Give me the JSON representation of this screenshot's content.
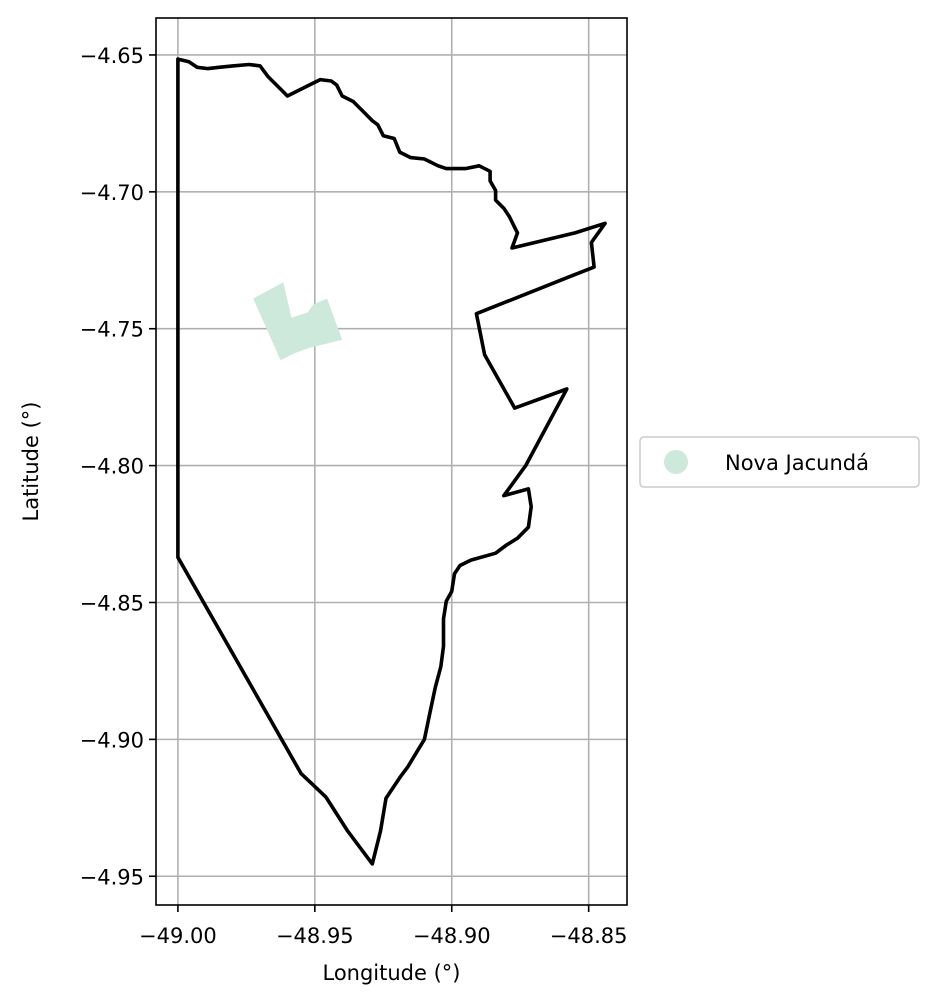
{
  "chart_data": {
    "type": "map",
    "xlabel": "Longitude (°)",
    "ylabel": "Latitude (°)",
    "xlim": [
      -49.008,
      -48.836
    ],
    "ylim": [
      -4.9605,
      -4.6365
    ],
    "grid": true,
    "x_ticks": [
      {
        "value": -49.0,
        "label": "−49.00"
      },
      {
        "value": -48.95,
        "label": "−48.95"
      },
      {
        "value": -48.9,
        "label": "−48.90"
      },
      {
        "value": -48.85,
        "label": "−48.85"
      }
    ],
    "y_ticks": [
      {
        "value": -4.65,
        "label": "−4.65"
      },
      {
        "value": -4.7,
        "label": "−4.70"
      },
      {
        "value": -4.75,
        "label": "−4.75"
      },
      {
        "value": -4.8,
        "label": "−4.80"
      },
      {
        "value": -4.85,
        "label": "−4.85"
      },
      {
        "value": -4.9,
        "label": "−4.90"
      },
      {
        "value": -4.95,
        "label": "−4.95"
      }
    ],
    "boundary": {
      "color": "#000000",
      "coords": [
        [
          -49.0,
          -4.6515
        ],
        [
          -48.996,
          -4.6525
        ],
        [
          -48.993,
          -4.6545
        ],
        [
          -48.989,
          -4.655
        ],
        [
          -48.985,
          -4.6545
        ],
        [
          -48.98,
          -4.654
        ],
        [
          -48.974,
          -4.6535
        ],
        [
          -48.97,
          -4.654
        ],
        [
          -48.967,
          -4.658
        ],
        [
          -48.962,
          -4.663
        ],
        [
          -48.96,
          -4.665
        ],
        [
          -48.957,
          -4.6635
        ],
        [
          -48.953,
          -4.6615
        ],
        [
          -48.948,
          -4.659
        ],
        [
          -48.944,
          -4.6595
        ],
        [
          -48.942,
          -4.661
        ],
        [
          -48.94,
          -4.665
        ],
        [
          -48.936,
          -4.667
        ],
        [
          -48.932,
          -4.671
        ],
        [
          -48.929,
          -4.674
        ],
        [
          -48.927,
          -4.6755
        ],
        [
          -48.925,
          -4.6795
        ],
        [
          -48.921,
          -4.6805
        ],
        [
          -48.919,
          -4.6855
        ],
        [
          -48.915,
          -4.6875
        ],
        [
          -48.91,
          -4.688
        ],
        [
          -48.905,
          -4.6905
        ],
        [
          -48.902,
          -4.6915
        ],
        [
          -48.898,
          -4.6915
        ],
        [
          -48.895,
          -4.6915
        ],
        [
          -48.89,
          -4.6905
        ],
        [
          -48.886,
          -4.6925
        ],
        [
          -48.886,
          -4.696
        ],
        [
          -48.884,
          -4.6995
        ],
        [
          -48.884,
          -4.703
        ],
        [
          -48.881,
          -4.706
        ],
        [
          -48.879,
          -4.709
        ],
        [
          -48.877,
          -4.713
        ],
        [
          -48.876,
          -4.715
        ],
        [
          -48.878,
          -4.7205
        ],
        [
          -48.855,
          -4.715
        ],
        [
          -48.844,
          -4.7115
        ],
        [
          -48.849,
          -4.7185
        ],
        [
          -48.848,
          -4.7275
        ],
        [
          -48.857,
          -4.731
        ],
        [
          -48.891,
          -4.7445
        ],
        [
          -48.888,
          -4.7595
        ],
        [
          -48.877,
          -4.779
        ],
        [
          -48.858,
          -4.772
        ],
        [
          -48.873,
          -4.8
        ],
        [
          -48.881,
          -4.811
        ],
        [
          -48.872,
          -4.8085
        ],
        [
          -48.871,
          -4.815
        ],
        [
          -48.872,
          -4.8225
        ],
        [
          -48.876,
          -4.8265
        ],
        [
          -48.88,
          -4.829
        ],
        [
          -48.884,
          -4.832
        ],
        [
          -48.893,
          -4.8345
        ],
        [
          -48.897,
          -4.8365
        ],
        [
          -48.899,
          -4.8395
        ],
        [
          -48.9,
          -4.846
        ],
        [
          -48.902,
          -4.8495
        ],
        [
          -48.903,
          -4.856
        ],
        [
          -48.903,
          -4.866
        ],
        [
          -48.904,
          -4.8735
        ],
        [
          -48.906,
          -4.881
        ],
        [
          -48.908,
          -4.8905
        ],
        [
          -48.91,
          -4.9
        ],
        [
          -48.913,
          -4.905
        ],
        [
          -48.916,
          -4.91
        ],
        [
          -48.919,
          -4.914
        ],
        [
          -48.924,
          -4.9215
        ],
        [
          -48.926,
          -4.9335
        ],
        [
          -48.929,
          -4.9455
        ],
        [
          -48.938,
          -4.9335
        ],
        [
          -48.946,
          -4.921
        ],
        [
          -48.955,
          -4.9125
        ],
        [
          -49.0,
          -4.8335
        ],
        [
          -49.0,
          -4.75
        ],
        [
          -49.0,
          -4.6515
        ]
      ]
    },
    "regions": [
      {
        "name": "Nova Jacundá",
        "color": "#cde9db",
        "coords": [
          [
            -48.9725,
            -4.739
          ],
          [
            -48.9615,
            -4.733
          ],
          [
            -48.9585,
            -4.746
          ],
          [
            -48.9525,
            -4.744
          ],
          [
            -48.9505,
            -4.741
          ],
          [
            -48.9455,
            -4.739
          ],
          [
            -48.94,
            -4.754
          ],
          [
            -48.952,
            -4.757
          ],
          [
            -48.9575,
            -4.759
          ],
          [
            -48.9625,
            -4.7615
          ]
        ]
      }
    ],
    "legend": {
      "placement": "center-right",
      "entries": [
        {
          "label": "Nova Jacundá",
          "color": "#cde9db"
        }
      ]
    }
  }
}
